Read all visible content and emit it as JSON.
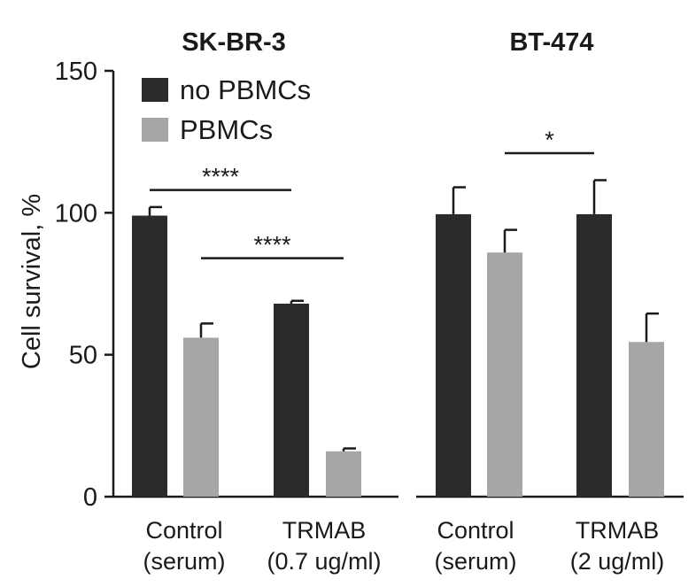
{
  "chart_data": {
    "type": "bar",
    "ylabel": "Cell survival, %",
    "ylim": [
      0,
      150
    ],
    "yticks": [
      0,
      50,
      100,
      150
    ],
    "colors": {
      "no PBMCs": "#2b2b2b",
      "PBMCs": "#a6a6a6"
    },
    "legend": {
      "placement": "top-left",
      "entries": [
        {
          "name": "no PBMCs",
          "color": "#2b2b2b"
        },
        {
          "name": "PBMCs",
          "color": "#a6a6a6"
        }
      ]
    },
    "panels": [
      {
        "title": "SK-BR-3",
        "categories": [
          {
            "line1": "Control",
            "line2": "(serum)"
          },
          {
            "line1": "TRMAB",
            "line2": "(0.7 ug/ml)"
          }
        ],
        "series": [
          {
            "name": "no PBMCs",
            "values": [
              99,
              68
            ],
            "errors": [
              3,
              1
            ]
          },
          {
            "name": "PBMCs",
            "values": [
              56,
              16
            ],
            "errors": [
              5,
              1
            ]
          }
        ],
        "significance": [
          {
            "label": "****",
            "from": [
              0,
              0
            ],
            "to": [
              1,
              0
            ],
            "y": 108
          },
          {
            "label": "****",
            "from": [
              0,
              1
            ],
            "to": [
              1,
              1
            ],
            "y": 84
          }
        ]
      },
      {
        "title": "BT-474",
        "categories": [
          {
            "line1": "Control",
            "line2": "(serum)"
          },
          {
            "line1": "TRMAB",
            "line2": "(2 ug/ml)"
          }
        ],
        "series": [
          {
            "name": "no PBMCs",
            "values": [
              99.5,
              99.5
            ],
            "errors": [
              9.5,
              12
            ]
          },
          {
            "name": "PBMCs",
            "values": [
              86,
              54.5
            ],
            "errors": [
              8,
              10
            ]
          }
        ],
        "significance": [
          {
            "label": "*",
            "from": [
              0,
              1
            ],
            "to": [
              1,
              0
            ],
            "y": 121
          }
        ]
      }
    ]
  }
}
